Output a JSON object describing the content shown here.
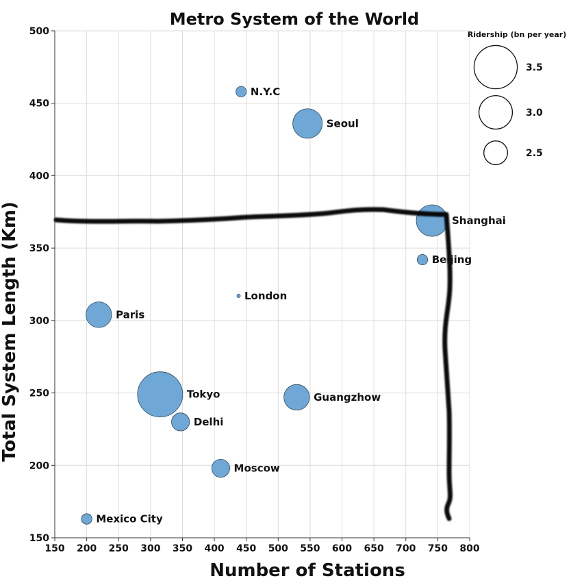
{
  "chart_data": {
    "type": "scatter",
    "title": "Metro System of the World",
    "xlabel": "Number of Stations",
    "ylabel": "Total System Length (Km)",
    "xlim": [
      150,
      800
    ],
    "ylim": [
      150,
      500
    ],
    "x_ticks": [
      150,
      200,
      250,
      300,
      350,
      400,
      450,
      500,
      550,
      600,
      650,
      700,
      750,
      800
    ],
    "y_ticks": [
      150,
      200,
      250,
      300,
      350,
      400,
      450,
      500
    ],
    "grid": true,
    "size_encoding": "ridership",
    "legend": {
      "title": "Ridership (bn per year)",
      "placement": "top-right",
      "entries": [
        {
          "label": "3.5",
          "value": 3.5
        },
        {
          "label": "3.0",
          "value": 3.0
        },
        {
          "label": "2.5",
          "value": 2.5
        }
      ]
    },
    "points": [
      {
        "name": "N.Y.C",
        "x": 442,
        "y": 458,
        "ridership": 1.8
      },
      {
        "name": "Seoul",
        "x": 546,
        "y": 436,
        "ridership": 2.8
      },
      {
        "name": "Shanghai",
        "x": 741,
        "y": 369,
        "ridership": 2.9
      },
      {
        "name": "Beijing",
        "x": 726,
        "y": 342,
        "ridership": 1.8
      },
      {
        "name": "London",
        "x": 438,
        "y": 317,
        "ridership": 1.3
      },
      {
        "name": "Paris",
        "x": 219,
        "y": 304,
        "ridership": 2.6
      },
      {
        "name": "Tokyo",
        "x": 315,
        "y": 249,
        "ridership": 3.6
      },
      {
        "name": "Guangzhow",
        "x": 529,
        "y": 247,
        "ridership": 2.6
      },
      {
        "name": "Delhi",
        "x": 347,
        "y": 230,
        "ridership": 2.2
      },
      {
        "name": "Moscow",
        "x": 410,
        "y": 198,
        "ridership": 2.2
      },
      {
        "name": "Mexico City",
        "x": 200,
        "y": 163,
        "ridership": 1.8
      }
    ],
    "point_color": "#6fa8d6",
    "point_stroke": "#2f4a5e",
    "annotation_color": "#000000"
  }
}
